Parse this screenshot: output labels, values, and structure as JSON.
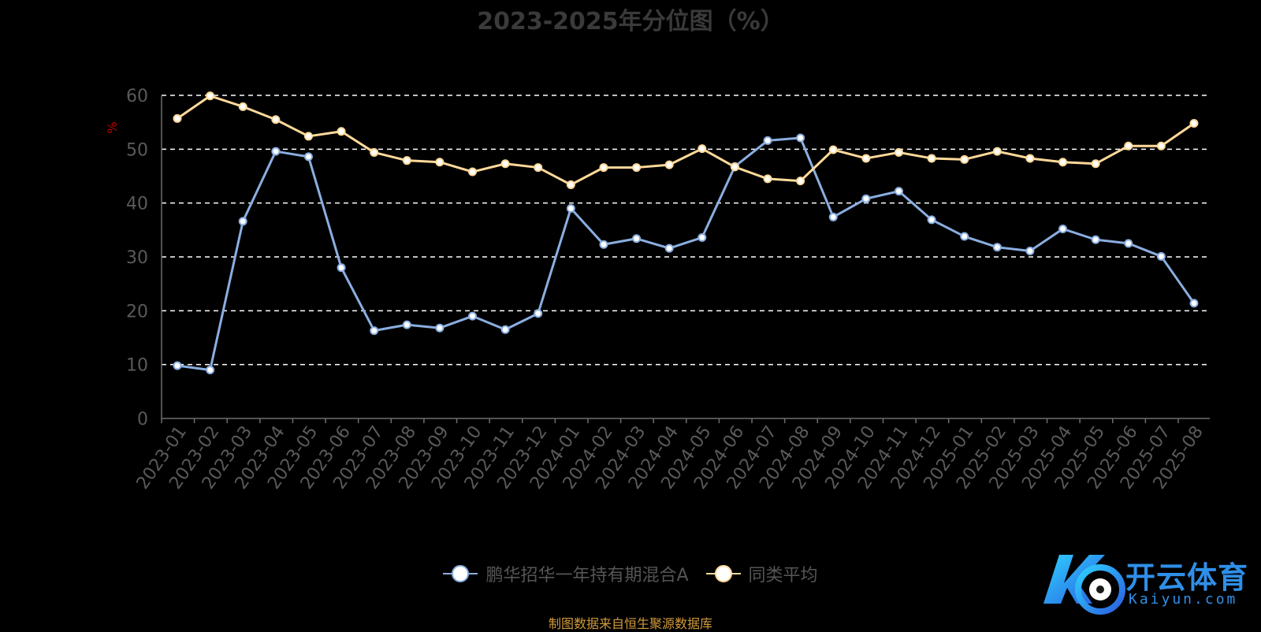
{
  "chart_data": {
    "type": "line",
    "title": "2023-2025年分位图（%）",
    "ylabel": "%",
    "ylim": [
      0,
      60
    ],
    "yticks": [
      0,
      10,
      20,
      30,
      40,
      50,
      60
    ],
    "grid": true,
    "legend_position": "bottom",
    "categories": [
      "2023-01",
      "2023-02",
      "2023-03",
      "2023-04",
      "2023-05",
      "2023-06",
      "2023-07",
      "2023-08",
      "2023-09",
      "2023-10",
      "2023-11",
      "2023-12",
      "2024-01",
      "2024-02",
      "2024-03",
      "2024-04",
      "2024-05",
      "2024-06",
      "2024-07",
      "2024-08",
      "2024-09",
      "2024-10",
      "2024-11",
      "2024-12",
      "2025-01",
      "2025-02",
      "2025-03",
      "2025-04",
      "2025-05",
      "2025-06",
      "2025-07",
      "2025-08"
    ],
    "series": [
      {
        "name": "鹏华招华一年持有期混合A",
        "color": "#8aaee0",
        "values": [
          9.8,
          9.0,
          36.6,
          49.6,
          48.6,
          28.0,
          16.3,
          17.4,
          16.8,
          19.0,
          16.5,
          19.5,
          39.0,
          32.3,
          33.4,
          31.6,
          33.6,
          46.8,
          51.6,
          52.1,
          37.4,
          40.8,
          42.2,
          36.9,
          33.8,
          31.8,
          31.1,
          35.2,
          33.2,
          32.5,
          30.1,
          21.4
        ]
      },
      {
        "name": "同类平均",
        "color": "#ffd99a",
        "values": [
          55.7,
          59.9,
          57.9,
          55.5,
          52.4,
          53.3,
          49.4,
          47.9,
          47.6,
          45.8,
          47.3,
          46.6,
          43.4,
          46.6,
          46.6,
          47.1,
          50.1,
          46.7,
          44.5,
          44.1,
          49.9,
          48.3,
          49.4,
          48.3,
          48.1,
          49.6,
          48.3,
          47.6,
          47.3,
          50.6,
          50.6,
          54.8
        ]
      }
    ]
  },
  "source_note": "制图数据来自恒生聚源数据库",
  "watermark": {
    "brand": "开云体育",
    "domain": "Kaiyun.com"
  },
  "colors": {
    "background": "#000000",
    "axis": "#6e6e6e",
    "grid": "#ffffff",
    "ylabel": "#c00000"
  }
}
